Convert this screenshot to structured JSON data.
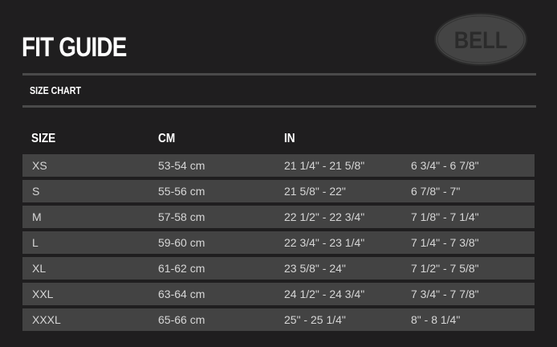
{
  "header": {
    "title": "FIT GUIDE",
    "logo_text": "BELL",
    "section": "SIZE CHART"
  },
  "table": {
    "columns": [
      "SIZE",
      "CM",
      "IN",
      ""
    ],
    "rows": [
      [
        "XS",
        "53-54 cm",
        "21 1/4\" - 21 5/8\"",
        "6 3/4\" - 6 7/8\""
      ],
      [
        "S",
        "55-56 cm",
        "21 5/8\" - 22\"",
        "6 7/8\" - 7\""
      ],
      [
        "M",
        "57-58 cm",
        "22 1/2\" - 22 3/4\"",
        "7 1/8\" - 7 1/4\""
      ],
      [
        "L",
        "59-60 cm",
        "22 3/4\" - 23 1/4\"",
        "7 1/4\" - 7 3/8\""
      ],
      [
        "XL",
        "61-62 cm",
        "23 5/8\" - 24\"",
        "7 1/2\" - 7 5/8\""
      ],
      [
        "XXL",
        "63-64 cm",
        "24 1/2\" - 24 3/4\"",
        "7 3/4\" - 7 7/8\""
      ],
      [
        "XXXL",
        "65-66 cm",
        "25\" - 25 1/4\"",
        "8\" - 8 1/4\""
      ]
    ]
  },
  "colors": {
    "background": "#1f1e1f",
    "row": "#434343",
    "logo": "#444444"
  }
}
